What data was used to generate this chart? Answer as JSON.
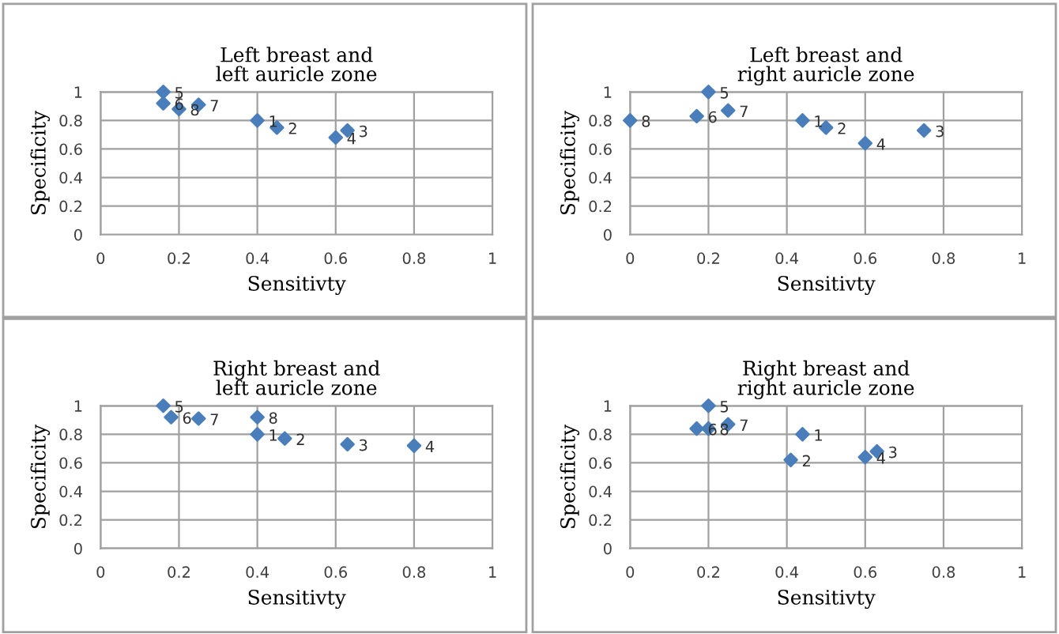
{
  "chart_data": [
    {
      "type": "scatter",
      "title": "Left breast and\nleft auricle zone",
      "xlabel": "Sensitivty",
      "ylabel": "Specificity",
      "xlim": [
        0,
        1
      ],
      "ylim": [
        0,
        1
      ],
      "xticks": [
        0,
        0.2,
        0.4,
        0.6,
        0.8,
        1
      ],
      "yticks": [
        0,
        0.2,
        0.4,
        0.6,
        0.8,
        1
      ],
      "grid": true,
      "marker": "diamond",
      "series": [
        {
          "color": "#4a7ebb",
          "x": [
            0.4,
            0.45,
            0.63,
            0.6,
            0.16,
            0.16,
            0.25,
            0.2
          ],
          "values": [
            0.8,
            0.75,
            0.73,
            0.68,
            1.0,
            0.92,
            0.91,
            0.88
          ]
        }
      ],
      "annotations": [
        {
          "text": "1",
          "x": 0.4,
          "y": 0.8
        },
        {
          "text": "2",
          "x": 0.45,
          "y": 0.75
        },
        {
          "text": "3",
          "x": 0.63,
          "y": 0.73
        },
        {
          "text": "4",
          "x": 0.6,
          "y": 0.68
        },
        {
          "text": "5",
          "x": 0.16,
          "y": 1.0
        },
        {
          "text": "6",
          "x": 0.16,
          "y": 0.92
        },
        {
          "text": "7",
          "x": 0.25,
          "y": 0.91
        },
        {
          "text": "8",
          "x": 0.2,
          "y": 0.88
        }
      ]
    },
    {
      "type": "scatter",
      "title": "Left breast and\nright auricle zone",
      "xlabel": "Sensitivty",
      "ylabel": "Specificity",
      "xlim": [
        0,
        1
      ],
      "ylim": [
        0,
        1
      ],
      "xticks": [
        0,
        0.2,
        0.4,
        0.6,
        0.8,
        1
      ],
      "yticks": [
        0,
        0.2,
        0.4,
        0.6,
        0.8,
        1
      ],
      "grid": true,
      "marker": "diamond",
      "series": [
        {
          "color": "#4a7ebb",
          "x": [
            0.44,
            0.5,
            0.75,
            0.6,
            0.2,
            0.17,
            0.25,
            0.0
          ],
          "values": [
            0.8,
            0.75,
            0.73,
            0.64,
            1.0,
            0.83,
            0.87,
            0.8
          ]
        }
      ],
      "annotations": [
        {
          "text": "1",
          "x": 0.44,
          "y": 0.8
        },
        {
          "text": "2",
          "x": 0.5,
          "y": 0.75
        },
        {
          "text": "3",
          "x": 0.75,
          "y": 0.73
        },
        {
          "text": "4",
          "x": 0.6,
          "y": 0.64
        },
        {
          "text": "5",
          "x": 0.2,
          "y": 1.0
        },
        {
          "text": "6",
          "x": 0.17,
          "y": 0.83
        },
        {
          "text": "7",
          "x": 0.25,
          "y": 0.87
        },
        {
          "text": "8",
          "x": 0.0,
          "y": 0.8
        }
      ]
    },
    {
      "type": "scatter",
      "title": "Right breast and\nleft auricle zone",
      "xlabel": "Sensitivty",
      "ylabel": "Specificity",
      "xlim": [
        0,
        1
      ],
      "ylim": [
        0,
        1
      ],
      "xticks": [
        0,
        0.2,
        0.4,
        0.6,
        0.8,
        1
      ],
      "yticks": [
        0,
        0.2,
        0.4,
        0.6,
        0.8,
        1
      ],
      "grid": true,
      "marker": "diamond",
      "series": [
        {
          "color": "#4a7ebb",
          "x": [
            0.4,
            0.47,
            0.63,
            0.8,
            0.16,
            0.18,
            0.25,
            0.4
          ],
          "values": [
            0.8,
            0.77,
            0.73,
            0.72,
            1.0,
            0.92,
            0.91,
            0.92
          ]
        }
      ],
      "annotations": [
        {
          "text": "1",
          "x": 0.4,
          "y": 0.8
        },
        {
          "text": "2",
          "x": 0.47,
          "y": 0.77
        },
        {
          "text": "3",
          "x": 0.63,
          "y": 0.73
        },
        {
          "text": "4",
          "x": 0.8,
          "y": 0.72
        },
        {
          "text": "5",
          "x": 0.16,
          "y": 1.0
        },
        {
          "text": "6",
          "x": 0.18,
          "y": 0.92
        },
        {
          "text": "7",
          "x": 0.25,
          "y": 0.91
        },
        {
          "text": "8",
          "x": 0.4,
          "y": 0.92
        }
      ]
    },
    {
      "type": "scatter",
      "title": "Right breast and\nright auricle zone",
      "xlabel": "Sensitivty",
      "ylabel": "Specificity",
      "xlim": [
        0,
        1
      ],
      "ylim": [
        0,
        1
      ],
      "xticks": [
        0,
        0.2,
        0.4,
        0.6,
        0.8,
        1
      ],
      "yticks": [
        0,
        0.2,
        0.4,
        0.6,
        0.8,
        1
      ],
      "grid": true,
      "marker": "diamond",
      "series": [
        {
          "color": "#4a7ebb",
          "x": [
            0.44,
            0.41,
            0.63,
            0.6,
            0.2,
            0.17,
            0.25,
            0.2
          ],
          "values": [
            0.8,
            0.62,
            0.68,
            0.64,
            1.0,
            0.84,
            0.87,
            0.84
          ]
        }
      ],
      "annotations": [
        {
          "text": "1",
          "x": 0.44,
          "y": 0.8
        },
        {
          "text": "2",
          "x": 0.41,
          "y": 0.62
        },
        {
          "text": "3",
          "x": 0.63,
          "y": 0.68
        },
        {
          "text": "4",
          "x": 0.6,
          "y": 0.64
        },
        {
          "text": "5",
          "x": 0.2,
          "y": 1.0
        },
        {
          "text": "6",
          "x": 0.17,
          "y": 0.84
        },
        {
          "text": "7",
          "x": 0.25,
          "y": 0.87
        },
        {
          "text": "8",
          "x": 0.2,
          "y": 0.84
        }
      ]
    }
  ]
}
